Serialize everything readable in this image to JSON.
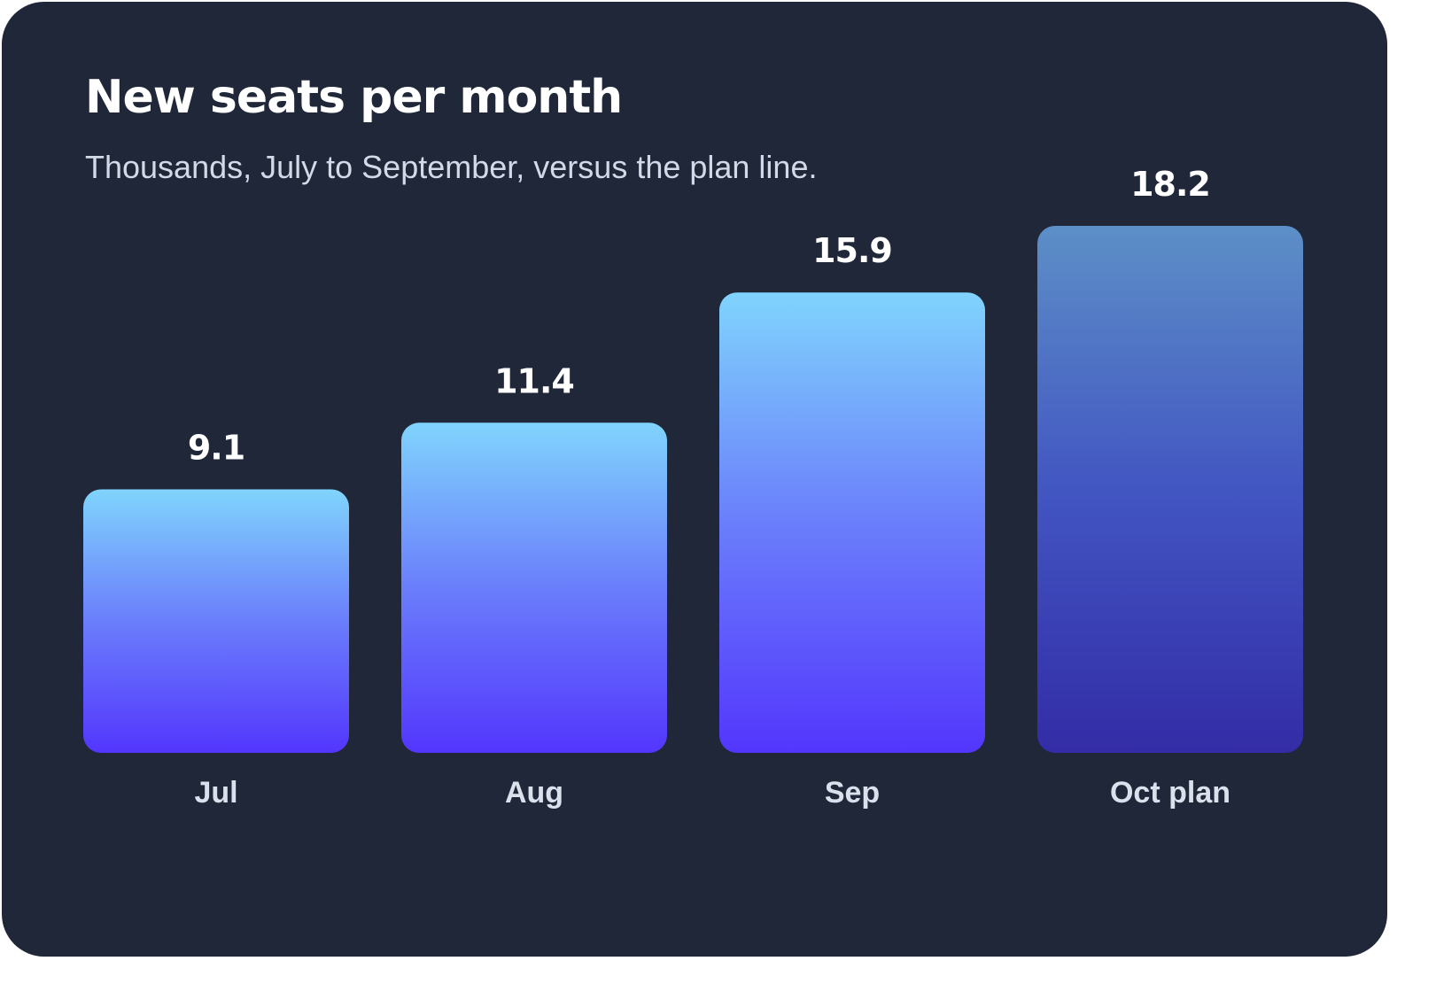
{
  "card": {
    "title": "New seats per month",
    "subtitle": "Thousands, July to September, versus the plan line."
  },
  "colors": {
    "background": "#1f2738",
    "actual_top": "#80d4fd",
    "actual_mid": "#6a7efb",
    "actual_bottom": "#5336fd",
    "plan_top": "#5d8fc7",
    "plan_mid": "#4256c2",
    "plan_bottom": "#332ca6"
  },
  "chart_data": {
    "type": "bar",
    "title": "New seats per month",
    "subtitle": "Thousands, July to September, versus the plan line.",
    "categories": [
      "Jul",
      "Aug",
      "Sep",
      "Oct plan"
    ],
    "values": [
      9.1,
      11.4,
      15.9,
      18.2
    ],
    "value_labels": [
      "9.1",
      "11.4",
      "15.9",
      "18.2"
    ],
    "planned": [
      false,
      false,
      false,
      true
    ],
    "ylim": [
      0,
      18.2
    ],
    "grid": false,
    "legend": "none"
  }
}
